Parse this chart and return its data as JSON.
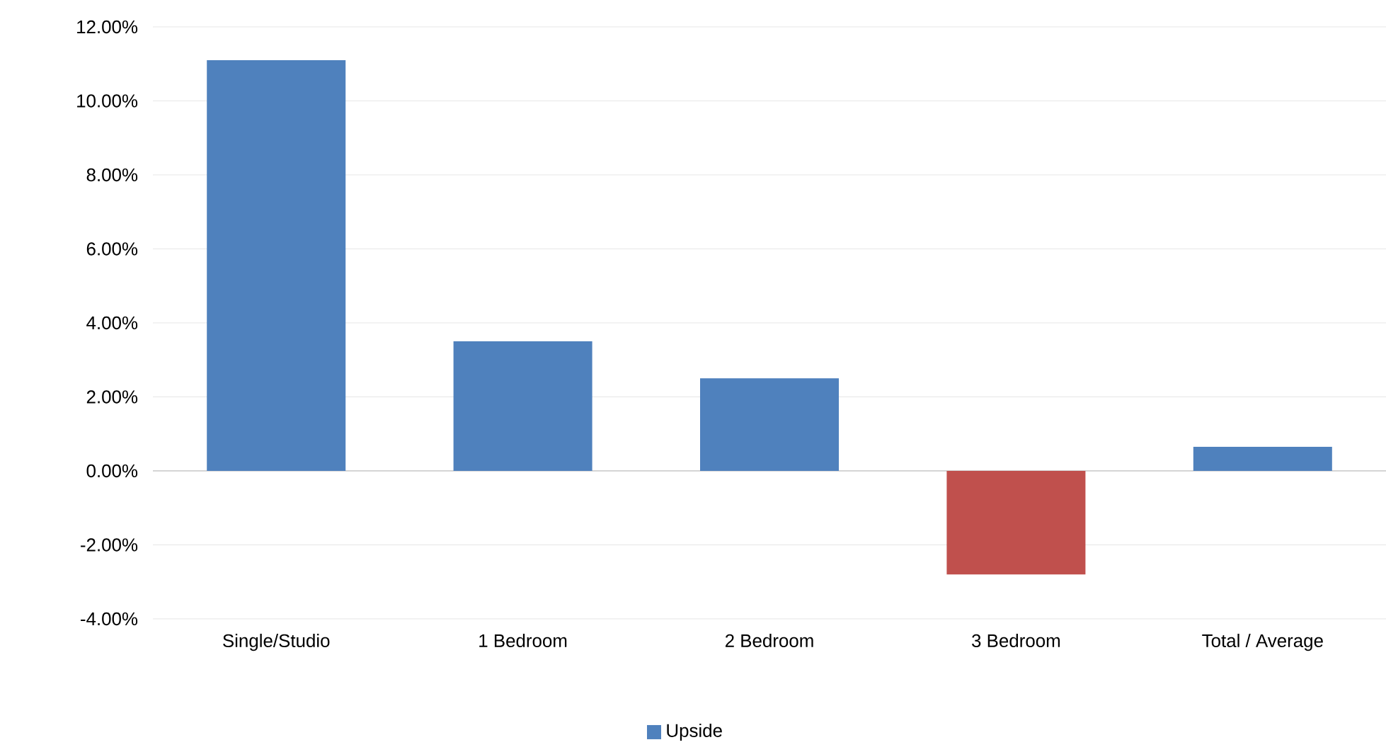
{
  "chart_data": {
    "type": "bar",
    "categories": [
      "Single/Studio",
      "1 Bedroom",
      "2 Bedroom",
      "3 Bedroom",
      "Total / Average"
    ],
    "series": [
      {
        "name": "Upside",
        "color": "#4f81bd",
        "colors": [
          "#4f81bd",
          "#4f81bd",
          "#4f81bd",
          "#c0504d",
          "#4f81bd"
        ],
        "values": [
          11.1,
          3.5,
          2.5,
          -2.8,
          0.65
        ]
      }
    ],
    "ylim": [
      -4,
      12
    ],
    "yticks": [
      {
        "value": -4,
        "label": "-4.00%"
      },
      {
        "value": -2,
        "label": "-2.00%"
      },
      {
        "value": 0,
        "label": "0.00%"
      },
      {
        "value": 2,
        "label": "2.00%"
      },
      {
        "value": 4,
        "label": "4.00%"
      },
      {
        "value": 6,
        "label": "6.00%"
      },
      {
        "value": 8,
        "label": "8.00%"
      },
      {
        "value": 10,
        "label": "10.00%"
      },
      {
        "value": 12,
        "label": "12.00%"
      }
    ],
    "grid": "y",
    "legend": "bottom"
  }
}
